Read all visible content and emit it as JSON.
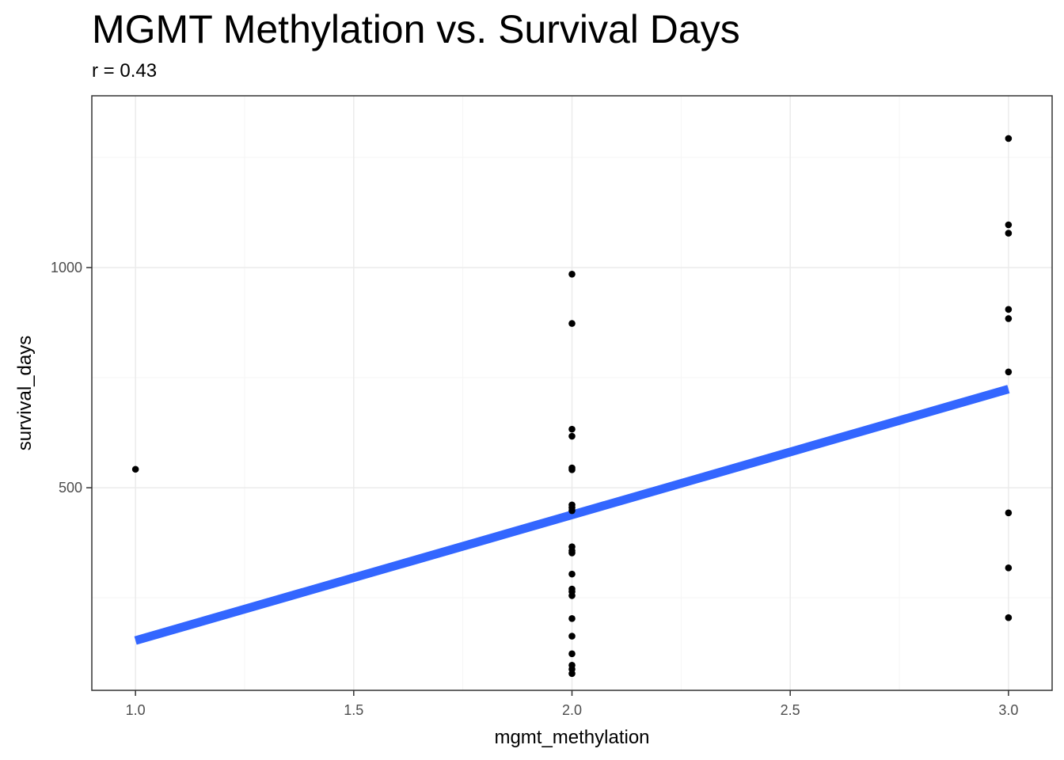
{
  "chart_data": {
    "type": "scatter",
    "title": "MGMT Methylation vs. Survival Days",
    "subtitle": "r = 0.43",
    "xlabel": "mgmt_methylation",
    "ylabel": "survival_days",
    "xlim": [
      0.9,
      3.1
    ],
    "ylim": [
      40,
      1390
    ],
    "x_ticks": [
      1.0,
      1.5,
      2.0,
      2.5,
      3.0
    ],
    "x_tick_labels": [
      "1.0",
      "1.5",
      "2.0",
      "2.5",
      "3.0"
    ],
    "y_ticks": [
      500,
      1000
    ],
    "y_tick_labels": [
      "500",
      "1000"
    ],
    "grid": true,
    "points": [
      {
        "x": 1.0,
        "y": 542
      },
      {
        "x": 2.0,
        "y": 985
      },
      {
        "x": 2.0,
        "y": 873
      },
      {
        "x": 2.0,
        "y": 633
      },
      {
        "x": 2.0,
        "y": 617
      },
      {
        "x": 2.0,
        "y": 545
      },
      {
        "x": 2.0,
        "y": 541
      },
      {
        "x": 2.0,
        "y": 461
      },
      {
        "x": 2.0,
        "y": 455
      },
      {
        "x": 2.0,
        "y": 448
      },
      {
        "x": 2.0,
        "y": 366
      },
      {
        "x": 2.0,
        "y": 357
      },
      {
        "x": 2.0,
        "y": 352
      },
      {
        "x": 2.0,
        "y": 304
      },
      {
        "x": 2.0,
        "y": 270
      },
      {
        "x": 2.0,
        "y": 264
      },
      {
        "x": 2.0,
        "y": 255
      },
      {
        "x": 2.0,
        "y": 203
      },
      {
        "x": 2.0,
        "y": 163
      },
      {
        "x": 2.0,
        "y": 123
      },
      {
        "x": 2.0,
        "y": 97
      },
      {
        "x": 2.0,
        "y": 88
      },
      {
        "x": 2.0,
        "y": 78
      },
      {
        "x": 3.0,
        "y": 1293
      },
      {
        "x": 3.0,
        "y": 1097
      },
      {
        "x": 3.0,
        "y": 1078
      },
      {
        "x": 3.0,
        "y": 905
      },
      {
        "x": 3.0,
        "y": 884
      },
      {
        "x": 3.0,
        "y": 763
      },
      {
        "x": 3.0,
        "y": 443
      },
      {
        "x": 3.0,
        "y": 318
      },
      {
        "x": 3.0,
        "y": 205
      }
    ],
    "trend_line": {
      "x": [
        1.0,
        3.0
      ],
      "y": [
        153,
        724
      ]
    },
    "colors": {
      "point": "#000000",
      "trend": "#3366FF",
      "grid_major": "#EBEBEB",
      "grid_minor": "#F5F5F5",
      "panel_border": "#333333"
    }
  }
}
